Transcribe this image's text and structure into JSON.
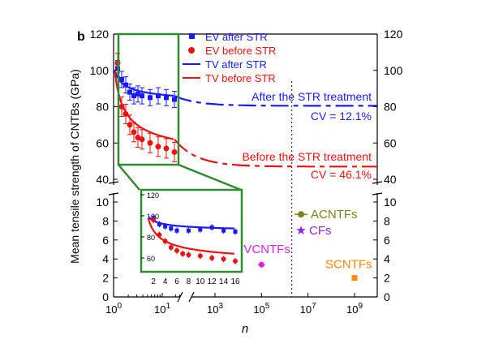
{
  "chart_data": {
    "panel_label": "b",
    "type": "scatter",
    "title": "",
    "xlabel": "n",
    "ylabel": "Mean tensile strength of CNTBs (GPa)",
    "x_scale": "log (broken axis)",
    "upper_panel": {
      "ylim": [
        40,
        120
      ],
      "yticks": [
        "40",
        "60",
        "80",
        "100",
        "120"
      ],
      "series": [
        {
          "name": "EV after STR",
          "color": "#1a1aff",
          "marker": "square",
          "x": [
            2,
            3,
            4,
            5,
            6,
            7,
            8,
            10,
            12,
            14,
            16
          ],
          "y": [
            101,
            95,
            92,
            88,
            86,
            87,
            86,
            85,
            86,
            85,
            84
          ]
        },
        {
          "name": "EV before STR",
          "color": "#ee1111",
          "marker": "circle",
          "x": [
            2,
            3,
            4,
            5,
            6,
            7,
            8,
            10,
            12,
            14,
            16
          ],
          "y": [
            104,
            80,
            76,
            70,
            66,
            63,
            62,
            60,
            58,
            57,
            55
          ]
        },
        {
          "name": "TV after STR",
          "color": "#1a1aff",
          "marker": "line"
        },
        {
          "name": "TV before STR",
          "color": "#ee1111",
          "marker": "line"
        }
      ],
      "annotations": [
        {
          "text": "After the STR treatment",
          "color": "#1a1aff"
        },
        {
          "text": "CV = 12.1%",
          "color": "#1a1aff"
        },
        {
          "text": "Before the STR treatment",
          "color": "#ee1111"
        },
        {
          "text": "CV = 46.1%",
          "color": "#ee1111"
        }
      ],
      "asymptotes": {
        "after": 80.5,
        "before": 47
      }
    },
    "lower_panel": {
      "ylim": [
        0,
        10
      ],
      "yticks": [
        "0",
        "2",
        "4",
        "6",
        "8",
        "10"
      ],
      "xticks": [
        "10^0",
        "10^1",
        "10^3",
        "10^5",
        "10^7",
        "10^9"
      ],
      "points": [
        {
          "name": "ACNTFs",
          "x": 5000000,
          "y": 8.7,
          "color": "#808020"
        },
        {
          "name": "CFs",
          "x": 5000000,
          "y": 7.0,
          "color": "#8a2be2"
        },
        {
          "name": "VCNTFs",
          "x": 100000,
          "y": 3.4,
          "color": "#e020e0"
        },
        {
          "name": "SCNTFs",
          "x": 1000000000,
          "y": 2.0,
          "color": "#ff8800"
        }
      ]
    },
    "inset": {
      "ylim": [
        50,
        120
      ],
      "yticks": [
        "60",
        "80",
        "100",
        "120"
      ],
      "xticks": [
        "2",
        "4",
        "6",
        "8",
        "10",
        "12",
        "14",
        "16"
      ],
      "series": [
        {
          "name": "EV after STR",
          "color": "#1a1aff",
          "x": [
            2,
            3,
            4,
            5,
            6,
            8,
            10,
            12,
            14,
            16
          ],
          "y": [
            98,
            92,
            90,
            88,
            86,
            86,
            87,
            89,
            86,
            85
          ]
        },
        {
          "name": "EV before STR",
          "color": "#ee1111",
          "x": [
            2,
            3,
            4,
            5,
            6,
            7,
            8,
            10,
            12,
            14,
            16
          ],
          "y": [
            96,
            82,
            76,
            70,
            67,
            64,
            63,
            62,
            60,
            59,
            57
          ]
        }
      ]
    },
    "reference_line_x": 2000000
  }
}
